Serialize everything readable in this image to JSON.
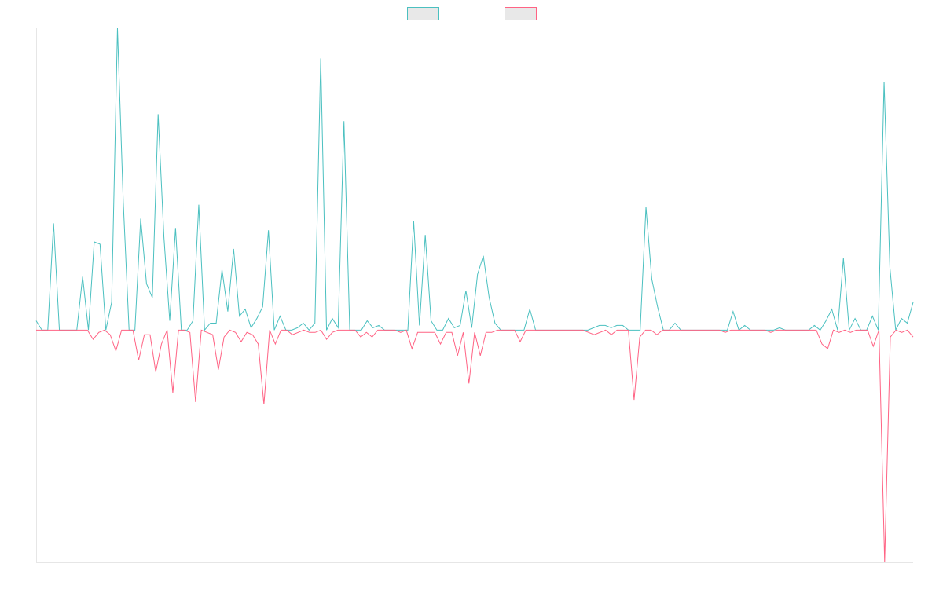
{
  "chart_data": {
    "type": "line",
    "title": "",
    "xlabel": "",
    "ylabel": "",
    "ylim": [
      -1,
      1.3
    ],
    "grid": false,
    "legend_position": "top-center",
    "series": [
      {
        "color": "#4bc0c0",
        "values": [
          0.04,
          0,
          0,
          0.46,
          0,
          0,
          0,
          0,
          0.23,
          0,
          0.38,
          0.37,
          0,
          0.12,
          1.3,
          0.55,
          0,
          0,
          0.48,
          0.2,
          0.14,
          0.93,
          0.4,
          0.04,
          0.44,
          0,
          0,
          0.04,
          0.54,
          0,
          0.03,
          0.03,
          0.26,
          0.08,
          0.35,
          0.06,
          0.09,
          0.01,
          0.05,
          0.1,
          0.43,
          0,
          0.06,
          0,
          0,
          0.01,
          0.03,
          0,
          0.03,
          1.17,
          0,
          0.05,
          0.01,
          0.9,
          0,
          0,
          0,
          0.04,
          0.01,
          0.02,
          0,
          0,
          0,
          0,
          0,
          0.47,
          0.02,
          0.41,
          0.04,
          0,
          0,
          0.05,
          0.01,
          0.02,
          0.17,
          0.01,
          0.24,
          0.32,
          0.14,
          0.03,
          0,
          0,
          0,
          0,
          0,
          0.09,
          0,
          0,
          0,
          0,
          0,
          0,
          0,
          0,
          0,
          0,
          0.01,
          0.02,
          0.02,
          0.01,
          0.02,
          0.02,
          0,
          0,
          0,
          0.53,
          0.22,
          0.1,
          0,
          0,
          0.03,
          0,
          0,
          0,
          0,
          0,
          0,
          0,
          0,
          0,
          0.08,
          0,
          0.02,
          0,
          0,
          0,
          0,
          0,
          0.01,
          0,
          0,
          0,
          0,
          0,
          0.02,
          0,
          0.04,
          0.09,
          0,
          0.31,
          0,
          0.05,
          0,
          0,
          0.06,
          0,
          1.07,
          0.27,
          0,
          0.05,
          0.03,
          0.12
        ]
      },
      {
        "color": "#ff6384",
        "values": [
          0,
          0,
          0,
          0,
          0,
          0,
          0,
          0,
          0,
          0,
          -0.04,
          -0.01,
          0,
          -0.02,
          -0.09,
          0,
          0,
          0,
          -0.13,
          -0.02,
          -0.02,
          -0.18,
          -0.06,
          0,
          -0.27,
          0,
          0,
          -0.01,
          -0.31,
          0,
          -0.01,
          -0.02,
          -0.17,
          -0.03,
          0,
          -0.01,
          -0.05,
          -0.01,
          -0.02,
          -0.06,
          -0.32,
          0,
          -0.06,
          0,
          0,
          -0.02,
          -0.01,
          0,
          -0.01,
          -0.01,
          0,
          -0.04,
          -0.01,
          0,
          0,
          0,
          0,
          -0.03,
          -0.01,
          -0.03,
          0,
          0,
          0,
          0,
          -0.01,
          0,
          -0.08,
          -0.01,
          -0.01,
          -0.01,
          -0.01,
          -0.06,
          -0.01,
          -0.01,
          -0.11,
          -0.01,
          -0.23,
          -0.01,
          -0.11,
          -0.01,
          -0.01,
          0,
          0,
          0,
          0,
          -0.05,
          0,
          0,
          0,
          0,
          0,
          0,
          0,
          0,
          0,
          0,
          0,
          -0.01,
          -0.02,
          -0.01,
          0,
          -0.02,
          0,
          0,
          0,
          -0.3,
          -0.03,
          0,
          0,
          -0.02,
          0,
          0,
          0,
          0,
          0,
          0,
          0,
          0,
          0,
          0,
          0,
          -0.01,
          0,
          0,
          0,
          0,
          0,
          0,
          0,
          -0.01,
          0,
          0,
          0,
          0,
          0,
          0,
          0,
          0,
          -0.06,
          -0.08,
          0,
          -0.01,
          0,
          -0.01,
          0,
          0,
          0,
          -0.07,
          0,
          -1,
          -0.03,
          0,
          -0.01,
          0,
          -0.03
        ]
      }
    ]
  }
}
